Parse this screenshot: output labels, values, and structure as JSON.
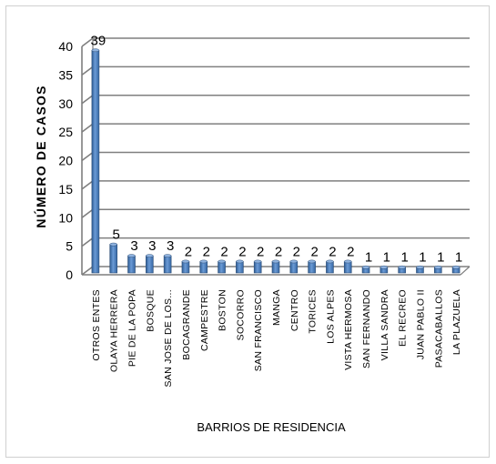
{
  "chart_data": {
    "type": "bar",
    "title": "",
    "xlabel": "BARRIOS DE RESIDENCIA",
    "ylabel": "NÚMERO DE CASOS",
    "ylim": [
      0,
      40
    ],
    "yticks": [
      0,
      5,
      10,
      15,
      20,
      25,
      30,
      35,
      40
    ],
    "grid": true,
    "legend": "none",
    "bar_color": "#4f81bd",
    "categories": [
      "OTROS ENTES",
      "OLAYA HERRERA",
      "PIE DE LA POPA",
      "BOSQUE",
      "SAN JOSE DE LOS...",
      "BOCAGRANDE",
      "CAMPESTRE",
      "BOSTON",
      "SOCORRO",
      "SAN FRANCISCO",
      "MANGA",
      "CENTRO",
      "TORICES",
      "LOS ALPES",
      "VISTA HERMOSA",
      "SAN FERNANDO",
      "VILLA SANDRA",
      "EL RECREO",
      "JUAN PABLO II",
      "PASACABALLOS",
      "LA PLAZUELA"
    ],
    "values": [
      39,
      5,
      3,
      3,
      3,
      2,
      2,
      2,
      2,
      2,
      2,
      2,
      2,
      2,
      2,
      1,
      1,
      1,
      1,
      1,
      1
    ]
  }
}
